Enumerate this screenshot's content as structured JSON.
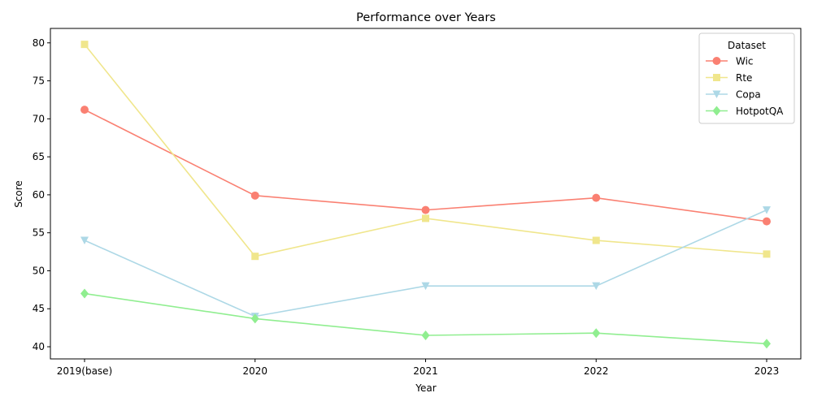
{
  "chart_data": {
    "type": "line",
    "title": "Performance over Years",
    "xlabel": "Year",
    "ylabel": "Score",
    "categories": [
      "2019(base)",
      "2020",
      "2021",
      "2022",
      "2023"
    ],
    "ylim": [
      38.4,
      81.9
    ],
    "yticks": [
      40,
      45,
      50,
      55,
      60,
      65,
      70,
      75,
      80
    ],
    "grid": false,
    "legend": {
      "title": "Dataset",
      "placement": "top-right"
    },
    "series": [
      {
        "name": "Wic",
        "color": "#fa8072",
        "marker": "circle",
        "values": [
          71.2,
          59.9,
          58.0,
          59.6,
          56.5
        ]
      },
      {
        "name": "Rte",
        "color": "#f0e68c",
        "marker": "square",
        "values": [
          79.8,
          51.9,
          56.9,
          54.0,
          52.2
        ]
      },
      {
        "name": "Copa",
        "color": "#add8e6",
        "marker": "triangle-down",
        "values": [
          54.0,
          44.0,
          48.0,
          48.0,
          58.0
        ]
      },
      {
        "name": "HotpotQA",
        "color": "#90ee90",
        "marker": "diamond",
        "values": [
          47.0,
          43.7,
          41.5,
          41.8,
          40.4
        ]
      }
    ]
  }
}
